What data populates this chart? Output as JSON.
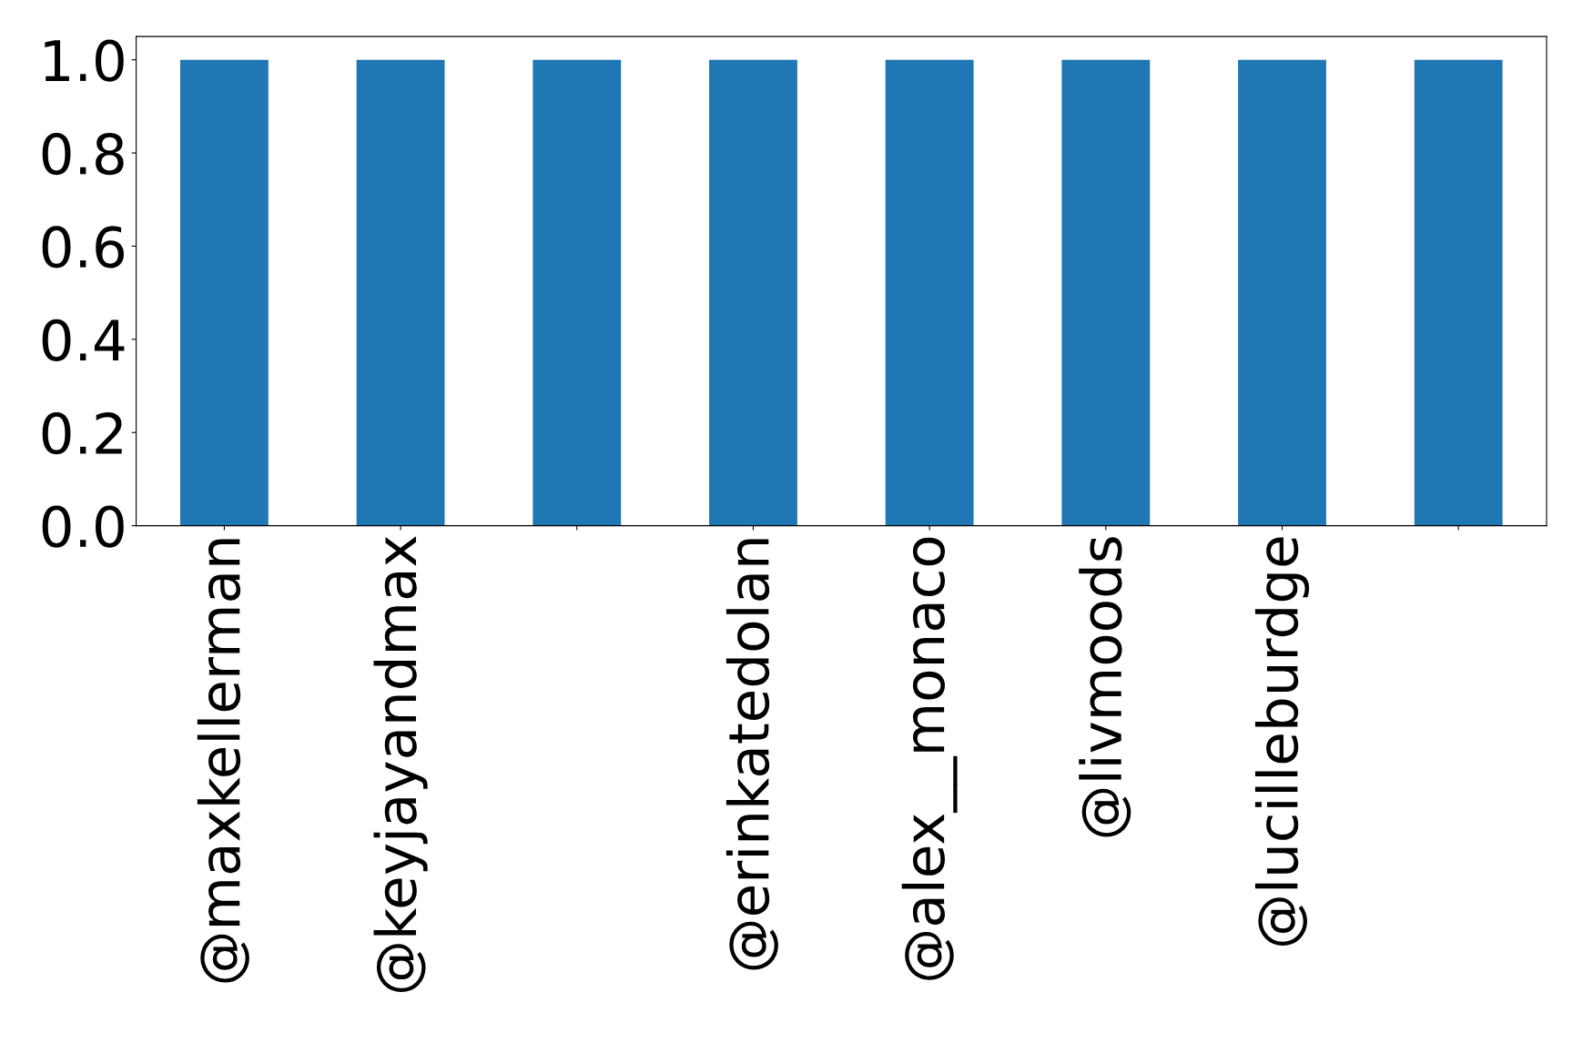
{
  "chart_data": {
    "type": "bar",
    "categories": [
      "@maxkellerman",
      "@keyjayandmax",
      null,
      "@erinkatedolan",
      "@alex__monaco",
      "@livmoods",
      "@lucilleburdge",
      null
    ],
    "values": [
      1,
      1,
      1,
      1,
      1,
      1,
      1,
      1
    ],
    "color": "#1f77b4",
    "ylim": [
      0,
      1.05
    ],
    "yticks": [
      {
        "value": 0,
        "label": "0.0"
      },
      {
        "value": 0.2,
        "label": "0.2"
      },
      {
        "value": 0.4,
        "label": "0.4"
      },
      {
        "value": 0.6,
        "label": "0.6"
      },
      {
        "value": 0.8,
        "label": "0.8"
      },
      {
        "value": 1,
        "label": "1.0"
      }
    ],
    "grid": false,
    "legend": false
  }
}
